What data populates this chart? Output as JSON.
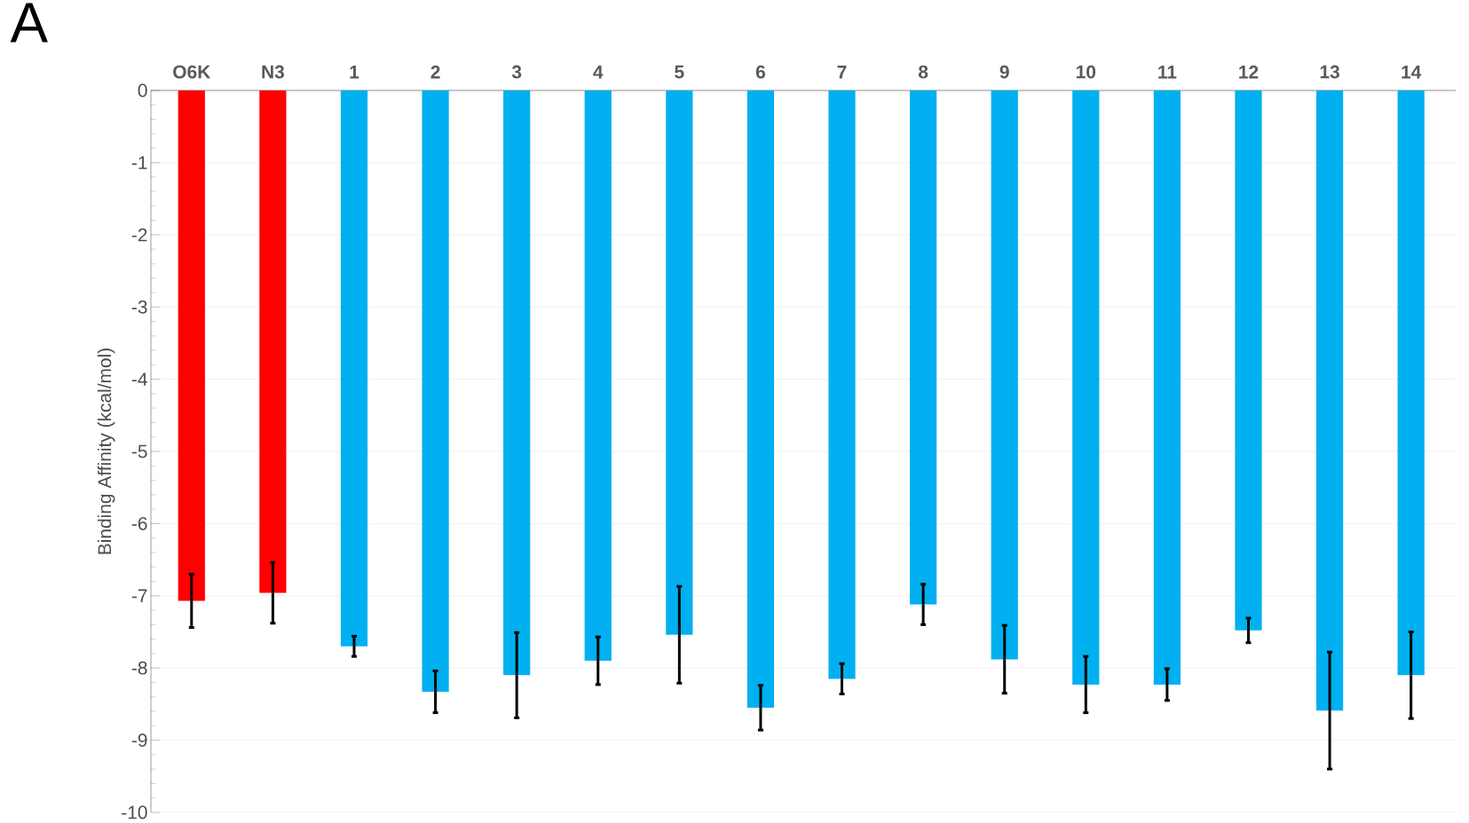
{
  "chart_data": {
    "type": "bar",
    "annotations": [
      "A"
    ],
    "ylabel": "Binding Affinity (kcal/mol)",
    "categories": [
      "O6K",
      "N3",
      "1",
      "2",
      "3",
      "4",
      "5",
      "6",
      "7",
      "8",
      "9",
      "10",
      "11",
      "12",
      "13",
      "14"
    ],
    "values": [
      -7.07,
      -6.96,
      -7.7,
      -8.33,
      -8.1,
      -7.9,
      -7.54,
      -8.55,
      -8.15,
      -7.12,
      -7.88,
      -8.23,
      -8.23,
      -7.48,
      -8.59,
      -8.1
    ],
    "errors": [
      0.37,
      0.42,
      0.14,
      0.29,
      0.59,
      0.33,
      0.67,
      0.31,
      0.21,
      0.28,
      0.47,
      0.39,
      0.22,
      0.17,
      0.81,
      0.6
    ],
    "colors": [
      "#ff0000",
      "#ff0000",
      "#00b0f0",
      "#00b0f0",
      "#00b0f0",
      "#00b0f0",
      "#00b0f0",
      "#00b0f0",
      "#00b0f0",
      "#00b0f0",
      "#00b0f0",
      "#00b0f0",
      "#00b0f0",
      "#00b0f0",
      "#00b0f0",
      "#00b0f0"
    ],
    "ylim": [
      -10,
      0
    ],
    "yticks": [
      0,
      -1,
      -2,
      -3,
      -4,
      -5,
      -6,
      -7,
      -8,
      -9,
      -10
    ],
    "grid": "y"
  }
}
